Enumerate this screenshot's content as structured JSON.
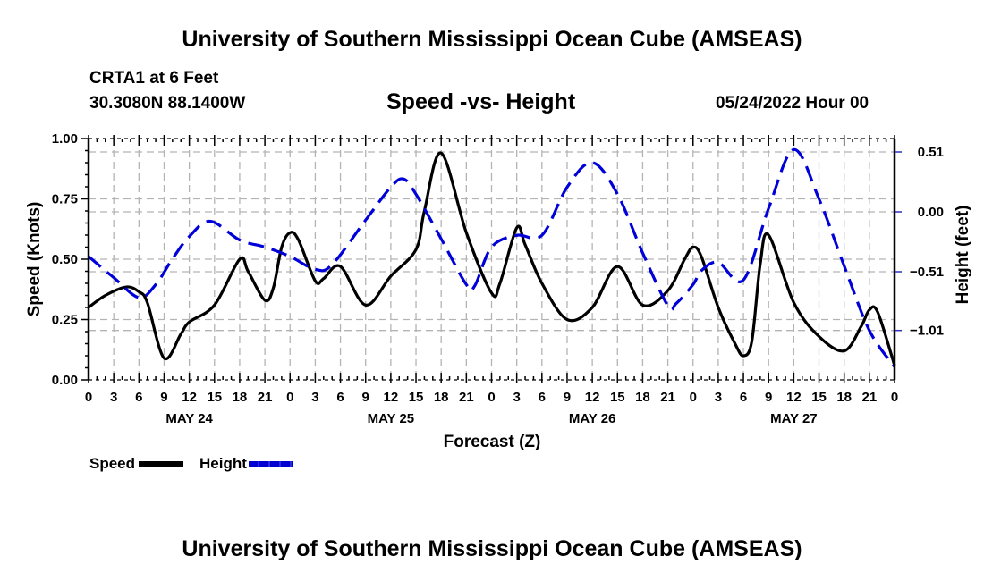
{
  "header": {
    "main_title": "University of Southern Mississippi Ocean Cube (AMSEAS)",
    "station": "CRTA1 at 6 Feet",
    "coords": "30.3080N  88.1400W",
    "subtitle": "Speed -vs- Height",
    "datetime": "05/24/2022 Hour 00"
  },
  "footer": {
    "bottom_title": "University of Southern Mississippi Ocean Cube (AMSEAS)"
  },
  "legend": {
    "speed_label": "Speed",
    "height_label": "Height"
  },
  "colors": {
    "speed": "#000000",
    "height": "#0000d8",
    "grid": "#b4b4b4"
  },
  "chart_data": {
    "type": "line",
    "title": "Speed -vs- Height",
    "xlabel": "Forecast (Z)",
    "ylabel": "Speed (Knots)",
    "y2label": "Height (feet)",
    "xlim": [
      0,
      96
    ],
    "ylim": [
      0,
      1.0
    ],
    "y2lim": [
      -1.43,
      0.63
    ],
    "grid": true,
    "legend_position": "bottom-left",
    "x_tick_labels": [
      "0",
      "3",
      "6",
      "9",
      "12",
      "15",
      "18",
      "21",
      "0",
      "3",
      "6",
      "9",
      "12",
      "15",
      "18",
      "21",
      "0",
      "3",
      "6",
      "9",
      "12",
      "15",
      "18",
      "21",
      "0",
      "3",
      "6",
      "9",
      "12",
      "15",
      "18",
      "21",
      "0"
    ],
    "day_labels": [
      {
        "label": "MAY 24",
        "hour": 12
      },
      {
        "label": "MAY 25",
        "hour": 36
      },
      {
        "label": "MAY 26",
        "hour": 60
      },
      {
        "label": "MAY 27",
        "hour": 84
      }
    ],
    "y_ticks": [
      {
        "value": 0.0,
        "label": "0.00"
      },
      {
        "value": 0.25,
        "label": "0.25"
      },
      {
        "value": 0.5,
        "label": "0.50"
      },
      {
        "value": 0.75,
        "label": "0.75"
      },
      {
        "value": 1.0,
        "label": "1.00"
      }
    ],
    "y2_ticks": [
      {
        "value": 0.51,
        "label": "0.51"
      },
      {
        "value": 0.0,
        "label": "0.00"
      },
      {
        "value": -0.51,
        "label": "−0.51"
      },
      {
        "value": -1.01,
        "label": "−1.01"
      }
    ],
    "series": [
      {
        "name": "Speed",
        "axis": "left",
        "style": "solid",
        "x": [
          0,
          2,
          4.5,
          6,
          7,
          9,
          11,
          12,
          15,
          18,
          19,
          21,
          22,
          23,
          24,
          25,
          27,
          28,
          30,
          33,
          36,
          39,
          40,
          42,
          45,
          48,
          49,
          51,
          52,
          54,
          57,
          60,
          63,
          66,
          69,
          71,
          72,
          73,
          75,
          77,
          78,
          79,
          80,
          81,
          84,
          87,
          90,
          92,
          93,
          94,
          96
        ],
        "values": [
          0.3,
          0.35,
          0.385,
          0.365,
          0.32,
          0.09,
          0.19,
          0.24,
          0.31,
          0.5,
          0.45,
          0.33,
          0.38,
          0.55,
          0.61,
          0.58,
          0.41,
          0.42,
          0.47,
          0.31,
          0.43,
          0.54,
          0.7,
          0.94,
          0.61,
          0.36,
          0.4,
          0.63,
          0.56,
          0.4,
          0.25,
          0.3,
          0.47,
          0.31,
          0.37,
          0.5,
          0.55,
          0.51,
          0.3,
          0.15,
          0.1,
          0.16,
          0.48,
          0.6,
          0.32,
          0.18,
          0.12,
          0.22,
          0.29,
          0.28,
          0.06
        ]
      },
      {
        "name": "Height",
        "axis": "right",
        "style": "dashed",
        "x": [
          0,
          3,
          6,
          8,
          10,
          12,
          14.5,
          18,
          21,
          24,
          27,
          29,
          33,
          36,
          37.5,
          39,
          42,
          45,
          46,
          48,
          51,
          54,
          57,
          60,
          63,
          66,
          69,
          70,
          72,
          73,
          75,
          78,
          81,
          84,
          87,
          90,
          93,
          96
        ],
        "values": [
          -0.38,
          -0.56,
          -0.73,
          -0.62,
          -0.4,
          -0.21,
          -0.08,
          -0.24,
          -0.3,
          -0.38,
          -0.49,
          -0.45,
          -0.07,
          0.21,
          0.28,
          0.15,
          -0.23,
          -0.62,
          -0.63,
          -0.3,
          -0.2,
          -0.2,
          0.21,
          0.42,
          0.15,
          -0.35,
          -0.8,
          -0.78,
          -0.62,
          -0.5,
          -0.43,
          -0.58,
          0.03,
          0.53,
          0.11,
          -0.46,
          -1.01,
          -1.32
        ]
      }
    ]
  }
}
